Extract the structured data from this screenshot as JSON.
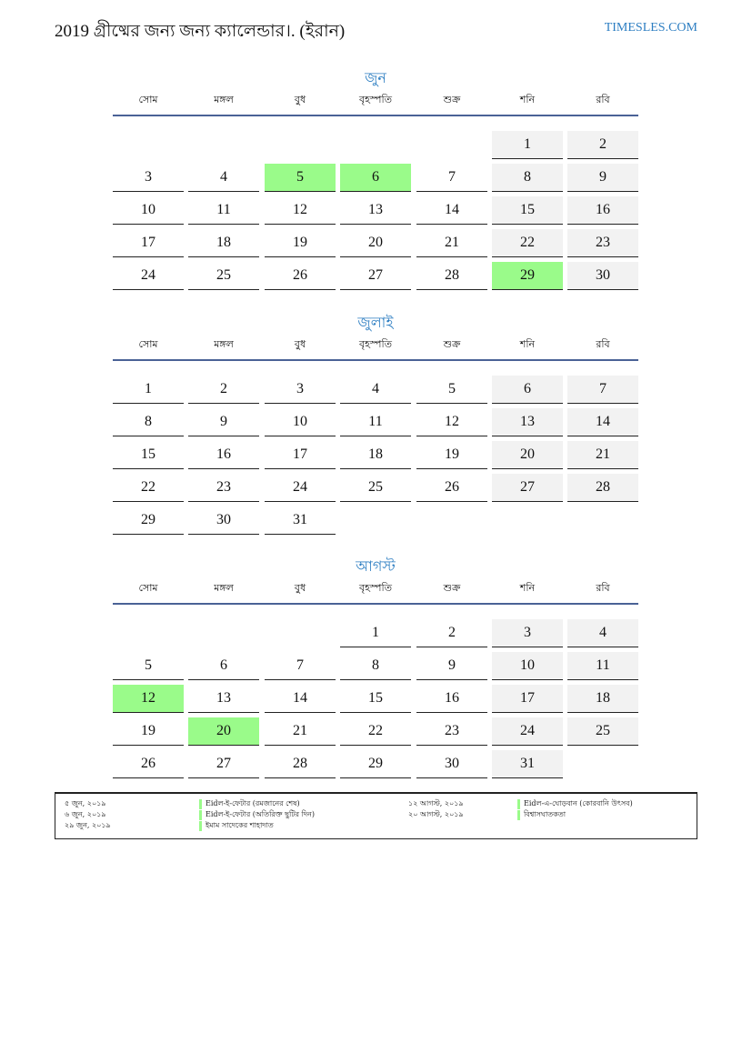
{
  "header": {
    "title": "2019 গ্রীষ্মের জন্য জন্য ক্যালেন্ডার।. (ইরান)",
    "brand": "TIMESLES.COM"
  },
  "weekdays": [
    "সোম",
    "মঙ্গল",
    "বুধ",
    "বৃহস্পতি",
    "শুক্র",
    "শনি",
    "রবি"
  ],
  "colors": {
    "accent": "#2d7ec2",
    "holiday": "#9afb8a",
    "weekend": "#f2f2f2",
    "rule": "#4a6296"
  },
  "months": [
    {
      "name": "জুন",
      "start_offset": 5,
      "days": 30,
      "holidays": [
        5,
        6,
        29
      ]
    },
    {
      "name": "জুলাই",
      "start_offset": 0,
      "days": 31,
      "holidays": []
    },
    {
      "name": "আগস্ট",
      "start_offset": 3,
      "days": 31,
      "holidays": [
        12,
        20
      ]
    }
  ],
  "legend": {
    "left": [
      {
        "date": "৫ জুন, ২০১৯",
        "name": "Eidল-ই-ফেটার (রমজানের শেষ)"
      },
      {
        "date": "৬ জুন, ২০১৯",
        "name": "Eidল-ই-ফেটার (অতিরিক্ত ছুটির দিন)"
      },
      {
        "date": "২৯ জুন, ২০১৯",
        "name": "ইমাম সাদেকের শাহাদাত"
      }
    ],
    "right": [
      {
        "date": "১২ আগস্ট, ২০১৯",
        "name": "Eidল-এ-ঘোড়বান (কোরবানি উৎসব)"
      },
      {
        "date": "২০ আগস্ট, ২০১৯",
        "name": "বিশ্বাসঘাতকতা"
      }
    ]
  }
}
